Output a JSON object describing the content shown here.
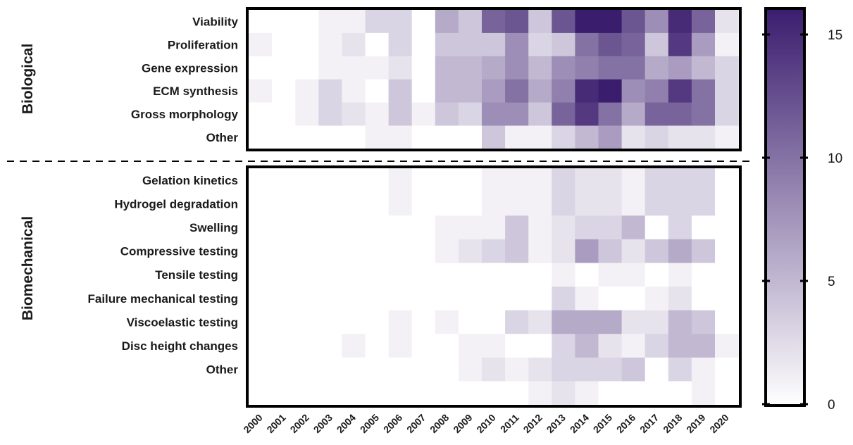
{
  "chart_data": {
    "type": "heatmap",
    "x": [
      "2000",
      "2001",
      "2002",
      "2003",
      "2004",
      "2005",
      "2006",
      "2007",
      "2008",
      "2009",
      "2010",
      "2011",
      "2012",
      "2013",
      "2014",
      "2015",
      "2016",
      "2017",
      "2018",
      "2019",
      "2020"
    ],
    "groups": [
      {
        "name": "Biological",
        "rows": [
          "Viability",
          "Proliferation",
          "Gene expression",
          "ECM synthesis",
          "Gross morphology",
          "Other"
        ],
        "values": [
          [
            0,
            0,
            0,
            1,
            1,
            3,
            3,
            0,
            6,
            4,
            11,
            12,
            4,
            12,
            16,
            16,
            12,
            8,
            15,
            11,
            2
          ],
          [
            1,
            0,
            0,
            1,
            2,
            0,
            3,
            0,
            4,
            4,
            4,
            8,
            3,
            4,
            10,
            12,
            11,
            4,
            14,
            7,
            1
          ],
          [
            0,
            0,
            0,
            1,
            1,
            1,
            2,
            0,
            5,
            5,
            6,
            8,
            5,
            8,
            9,
            10,
            10,
            6,
            7,
            5,
            3
          ],
          [
            1,
            0,
            1,
            3,
            1,
            0,
            4,
            0,
            5,
            5,
            7,
            10,
            6,
            9,
            15,
            16,
            8,
            9,
            14,
            10,
            3
          ],
          [
            0,
            0,
            1,
            3,
            2,
            1,
            4,
            1,
            4,
            3,
            8,
            8,
            4,
            11,
            14,
            10,
            6,
            11,
            11,
            10,
            3
          ],
          [
            0,
            0,
            0,
            0,
            0,
            1,
            1,
            0,
            0,
            0,
            4,
            1,
            1,
            3,
            5,
            7,
            2,
            3,
            2,
            2,
            1
          ]
        ]
      },
      {
        "name": "Biomechanical",
        "rows": [
          "Gelation kinetics",
          "Hydrogel degradation",
          "Swelling",
          "Compressive testing",
          "Tensile testing",
          "Failure mechanical testing",
          "Viscoelastic testing",
          "Disc height changes",
          "Other",
          ""
        ],
        "values": [
          [
            0,
            0,
            0,
            0,
            0,
            0,
            1,
            0,
            0,
            0,
            1,
            1,
            1,
            3,
            2,
            2,
            1,
            3,
            3,
            3,
            0
          ],
          [
            0,
            0,
            0,
            0,
            0,
            0,
            1,
            0,
            0,
            0,
            1,
            1,
            1,
            3,
            2,
            2,
            1,
            3,
            3,
            3,
            0
          ],
          [
            0,
            0,
            0,
            0,
            0,
            0,
            0,
            0,
            1,
            1,
            1,
            4,
            1,
            2,
            3,
            3,
            5,
            0,
            3,
            0,
            0
          ],
          [
            0,
            0,
            0,
            0,
            0,
            0,
            0,
            0,
            1,
            2,
            3,
            4,
            1,
            2,
            7,
            4,
            2,
            4,
            6,
            4,
            0
          ],
          [
            0,
            0,
            0,
            0,
            0,
            0,
            0,
            0,
            0,
            0,
            0,
            0,
            0,
            1,
            0,
            1,
            1,
            0,
            1,
            0,
            0
          ],
          [
            0,
            0,
            0,
            0,
            0,
            0,
            0,
            0,
            0,
            0,
            0,
            0,
            0,
            3,
            1,
            0,
            0,
            1,
            2,
            0,
            0
          ],
          [
            0,
            0,
            0,
            0,
            0,
            0,
            1,
            0,
            1,
            0,
            0,
            3,
            2,
            6,
            6,
            6,
            2,
            2,
            5,
            4,
            0
          ],
          [
            0,
            0,
            0,
            0,
            1,
            0,
            1,
            0,
            0,
            1,
            1,
            0,
            0,
            3,
            5,
            2,
            1,
            3,
            5,
            5,
            1
          ],
          [
            0,
            0,
            0,
            0,
            0,
            0,
            0,
            0,
            0,
            1,
            2,
            1,
            2,
            3,
            3,
            3,
            4,
            0,
            3,
            1,
            0
          ],
          [
            0,
            0,
            0,
            0,
            0,
            0,
            0,
            0,
            0,
            0,
            0,
            0,
            1,
            2,
            1,
            0,
            0,
            0,
            0,
            1,
            0
          ]
        ]
      }
    ],
    "colorbar": {
      "min": 0,
      "max": 16,
      "ticks": [
        0,
        5,
        10,
        15
      ],
      "low_color": "#ffffff",
      "high_color": "#3b1d6e"
    },
    "separator": "dashed"
  }
}
